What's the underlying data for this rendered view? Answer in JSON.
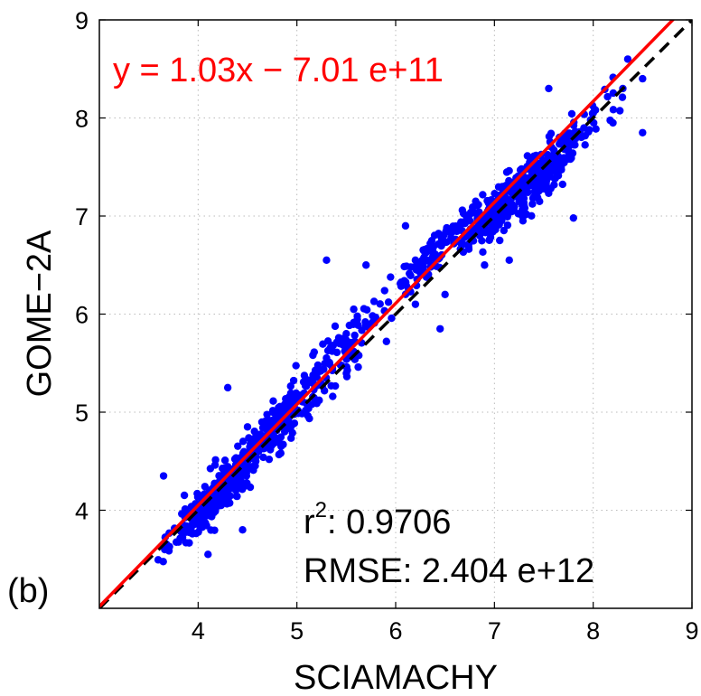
{
  "chart_data": {
    "type": "scatter",
    "xlabel": "SCIAMACHY",
    "ylabel": "GOME−2A",
    "xlim": [
      3,
      9
    ],
    "ylim": [
      3,
      9
    ],
    "xticks": [
      4,
      5,
      6,
      7,
      8,
      9
    ],
    "yticks": [
      4,
      5,
      6,
      7,
      8,
      9
    ],
    "grid": true,
    "panel_label": "(b)",
    "fit": {
      "equation_label": "y = 1.03x − 7.01 e+11",
      "slope": 1.03,
      "intercept": -0.0701,
      "color": "#ff0000"
    },
    "identity_line": {
      "slope": 1,
      "intercept": 0,
      "style": "dashed",
      "color": "#000000"
    },
    "stats": {
      "r2_prefix": "r",
      "r2_sup": "2",
      "r2_value": ": 0.9706",
      "rmse_label": "RMSE: 2.404 e+12"
    },
    "points_color": "#0000ff",
    "clusters": [
      {
        "cx": 4.2,
        "cy": 4.15,
        "sx": 0.22,
        "sy": 0.18,
        "n": 300
      },
      {
        "cx": 4.7,
        "cy": 4.75,
        "sx": 0.25,
        "sy": 0.22,
        "n": 200
      },
      {
        "cx": 5.4,
        "cy": 5.55,
        "sx": 0.3,
        "sy": 0.3,
        "n": 120
      },
      {
        "cx": 6.4,
        "cy": 6.65,
        "sx": 0.22,
        "sy": 0.15,
        "n": 100
      },
      {
        "cx": 7.0,
        "cy": 7.05,
        "sx": 0.22,
        "sy": 0.18,
        "n": 150
      },
      {
        "cx": 7.5,
        "cy": 7.45,
        "sx": 0.28,
        "sy": 0.22,
        "n": 240
      }
    ],
    "outliers": [
      [
        3.65,
        4.35
      ],
      [
        3.95,
        3.85
      ],
      [
        4.1,
        3.55
      ],
      [
        4.3,
        5.25
      ],
      [
        4.5,
        4.85
      ],
      [
        5.3,
        6.55
      ],
      [
        5.5,
        5.8
      ],
      [
        5.7,
        6.5
      ],
      [
        6.45,
        5.85
      ],
      [
        6.5,
        6.2
      ],
      [
        6.2,
        6.55
      ],
      [
        6.1,
        6.9
      ],
      [
        6.9,
        6.5
      ],
      [
        7.15,
        6.55
      ],
      [
        7.55,
        8.3
      ],
      [
        7.8,
        6.98
      ],
      [
        8.0,
        8.05
      ],
      [
        8.35,
        8.6
      ],
      [
        8.5,
        8.4
      ],
      [
        8.5,
        7.85
      ],
      [
        8.3,
        8.3
      ],
      [
        8.2,
        7.95
      ],
      [
        4.45,
        3.8
      ],
      [
        6.2,
        6.1
      ]
    ]
  }
}
